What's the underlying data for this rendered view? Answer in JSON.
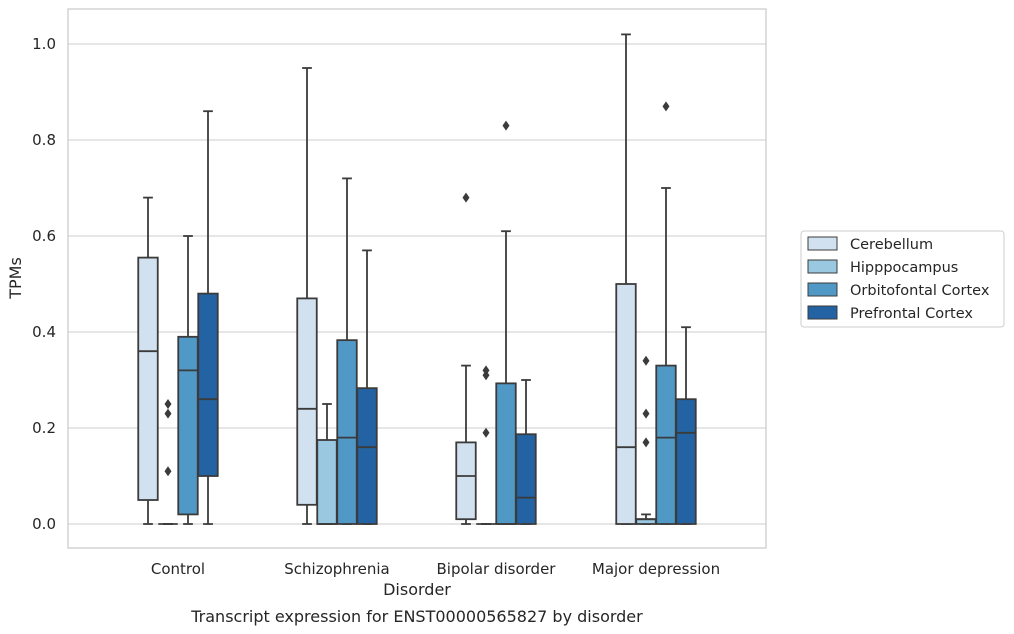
{
  "caption": "Transcript expression for ENST00000565827 by disorder",
  "chart_data": {
    "type": "box",
    "xlabel": "Disorder",
    "ylabel": "TPMs",
    "ylim": [
      -0.05,
      1.075
    ],
    "yticks": [
      0.0,
      0.2,
      0.4,
      0.6,
      0.8,
      1.0
    ],
    "ytick_labels": [
      "0.0",
      "0.2",
      "0.4",
      "0.6",
      "0.8",
      "1.0"
    ],
    "grid": "horizontal",
    "legend_placement": "right",
    "categories": [
      "Control",
      "Schizophrenia",
      "Bipolar disorder",
      "Major depression"
    ],
    "series": [
      {
        "name": "Cerebellum",
        "color": "#d2e1f0",
        "boxes": [
          {
            "whislo": 0.0,
            "q1": 0.05,
            "med": 0.36,
            "q3": 0.555,
            "whishi": 0.68,
            "fliers": []
          },
          {
            "whislo": 0.0,
            "q1": 0.04,
            "med": 0.24,
            "q3": 0.47,
            "whishi": 0.95,
            "fliers": []
          },
          {
            "whislo": 0.0,
            "q1": 0.01,
            "med": 0.1,
            "q3": 0.17,
            "whishi": 0.33,
            "fliers": [
              0.68
            ]
          },
          {
            "whislo": 0.0,
            "q1": 0.0,
            "med": 0.16,
            "q3": 0.5,
            "whishi": 1.02,
            "fliers": []
          }
        ]
      },
      {
        "name": "Hipppocampus",
        "color": "#9ac8e0",
        "boxes": [
          {
            "whislo": 0.0,
            "q1": 0.0,
            "med": 0.0,
            "q3": 0.0,
            "whishi": 0.0,
            "fliers": [
              0.11,
              0.23,
              0.25
            ]
          },
          {
            "whislo": 0.0,
            "q1": 0.0,
            "med": 0.0,
            "q3": 0.175,
            "whishi": 0.25,
            "fliers": []
          },
          {
            "whislo": 0.0,
            "q1": 0.0,
            "med": 0.0,
            "q3": 0.0,
            "whishi": 0.0,
            "fliers": [
              0.19,
              0.31,
              0.32
            ]
          },
          {
            "whislo": 0.0,
            "q1": 0.0,
            "med": 0.01,
            "q3": 0.01,
            "whishi": 0.02,
            "fliers": [
              0.17,
              0.23,
              0.34
            ]
          }
        ]
      },
      {
        "name": "Orbitofontal Cortex",
        "color": "#5098c6",
        "boxes": [
          {
            "whislo": 0.0,
            "q1": 0.02,
            "med": 0.32,
            "q3": 0.39,
            "whishi": 0.6,
            "fliers": []
          },
          {
            "whislo": 0.0,
            "q1": 0.0,
            "med": 0.18,
            "q3": 0.383,
            "whishi": 0.72,
            "fliers": []
          },
          {
            "whislo": 0.0,
            "q1": 0.0,
            "med": 0.0,
            "q3": 0.293,
            "whishi": 0.61,
            "fliers": [
              0.83
            ]
          },
          {
            "whislo": 0.0,
            "q1": 0.0,
            "med": 0.18,
            "q3": 0.33,
            "whishi": 0.7,
            "fliers": [
              0.87
            ]
          }
        ]
      },
      {
        "name": "Prefrontal Cortex",
        "color": "#2363a3",
        "boxes": [
          {
            "whislo": 0.0,
            "q1": 0.1,
            "med": 0.26,
            "q3": 0.48,
            "whishi": 0.86,
            "fliers": []
          },
          {
            "whislo": 0.0,
            "q1": 0.0,
            "med": 0.16,
            "q3": 0.283,
            "whishi": 0.57,
            "fliers": []
          },
          {
            "whislo": 0.0,
            "q1": 0.0,
            "med": 0.055,
            "q3": 0.187,
            "whishi": 0.3,
            "fliers": []
          },
          {
            "whislo": 0.0,
            "q1": 0.0,
            "med": 0.19,
            "q3": 0.26,
            "whishi": 0.41,
            "fliers": []
          }
        ]
      }
    ]
  }
}
